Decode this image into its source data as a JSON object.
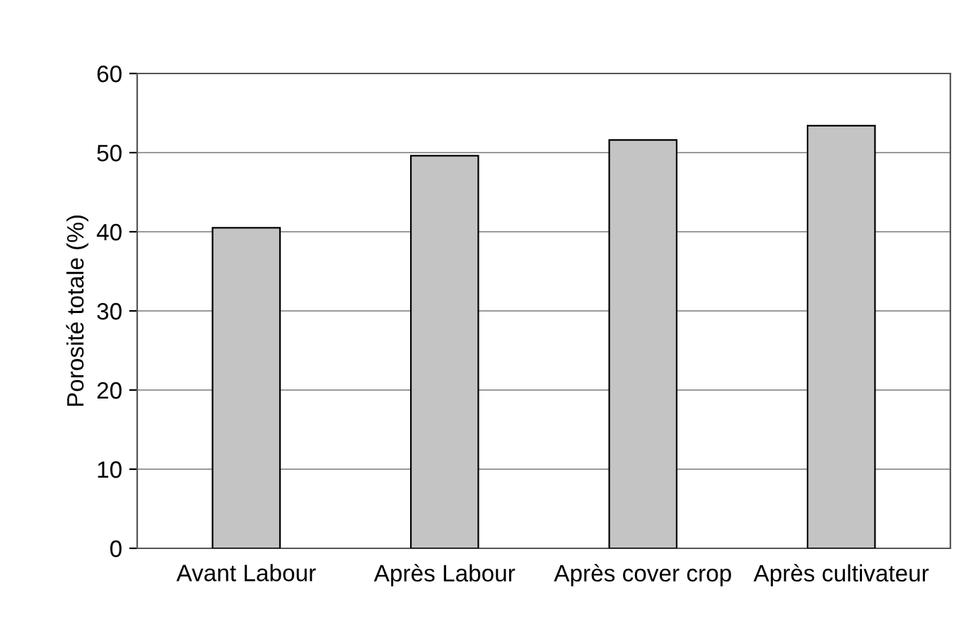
{
  "chart_data": {
    "type": "bar",
    "ylabel": "Porosité totale (%)",
    "categories": [
      "Avant Labour",
      "Après Labour",
      "Après cover crop",
      "Après cultivateur"
    ],
    "values": [
      40.5,
      49.6,
      51.6,
      53.4
    ],
    "color": "#c4c4c4",
    "ylim": [
      0,
      60
    ],
    "yticks": [
      0,
      10,
      20,
      30,
      40,
      50,
      60
    ],
    "grid": "y"
  }
}
